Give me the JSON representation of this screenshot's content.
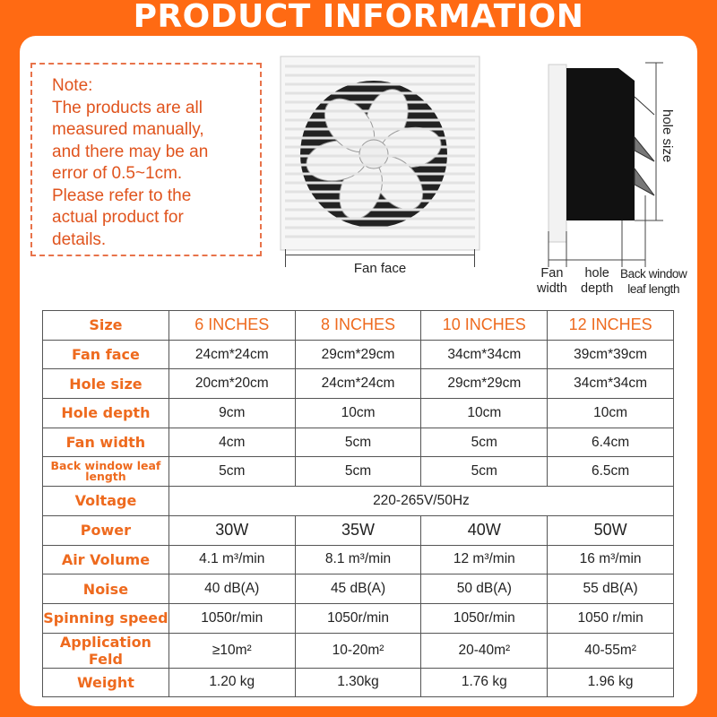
{
  "title": "PRODUCT INFORMATION",
  "colors": {
    "background": "#ff6a13",
    "label": "#ee6a1e",
    "note": "#e0541e"
  },
  "note": {
    "lines": [
      "Note:",
      "The products are all",
      "measured manually,",
      "and there may be an",
      "error of 0.5~1cm.",
      "Please refer to the",
      "actual product for",
      "details."
    ]
  },
  "diagram": {
    "fan_face": "Fan face",
    "hole_size": "hole size",
    "fan_width": [
      "Fan",
      "width"
    ],
    "hole_depth": [
      "hole",
      "depth"
    ],
    "back_window": [
      "Back window",
      "leaf length"
    ]
  },
  "table": {
    "header": {
      "label": "Size",
      "cols": [
        "6 INCHES",
        "8 INCHES",
        "10 INCHES",
        "12 INCHES"
      ]
    },
    "rows": [
      {
        "label": "Fan face",
        "values": [
          "24cm*24cm",
          "29cm*29cm",
          "34cm*34cm",
          "39cm*39cm"
        ]
      },
      {
        "label": "Hole size",
        "values": [
          "20cm*20cm",
          "24cm*24cm",
          "29cm*29cm",
          "34cm*34cm"
        ]
      },
      {
        "label": "Hole depth",
        "values": [
          "9cm",
          "10cm",
          "10cm",
          "10cm"
        ]
      },
      {
        "label": "Fan width",
        "values": [
          "4cm",
          "5cm",
          "5cm",
          "6.4cm"
        ]
      },
      {
        "label": "Back window leaf length",
        "values": [
          "5cm",
          "5cm",
          "5cm",
          "6.5cm"
        ]
      },
      {
        "label": "Voltage",
        "merged": "220-265V/50Hz"
      },
      {
        "label": "Power",
        "values": [
          "30W",
          "35W",
          "40W",
          "50W"
        ]
      },
      {
        "label": "Air Volume",
        "values": [
          "4.1 m³/min",
          "8.1 m³/min",
          "12 m³/min",
          "16 m³/min"
        ]
      },
      {
        "label": "Noise",
        "values": [
          "40 dB(A)",
          "45 dB(A)",
          "50 dB(A)",
          "55 dB(A)"
        ]
      },
      {
        "label": "Spinning speed",
        "values": [
          "1050r/min",
          "1050r/min",
          "1050r/min",
          "1050 r/min"
        ]
      },
      {
        "label": "Application Feld",
        "values": [
          "≥10m²",
          "10-20m²",
          "20-40m²",
          "40-55m²"
        ]
      },
      {
        "label": "Weight",
        "values": [
          "1.20 kg",
          "1.30kg",
          "1.76 kg",
          "1.96 kg"
        ]
      }
    ]
  }
}
